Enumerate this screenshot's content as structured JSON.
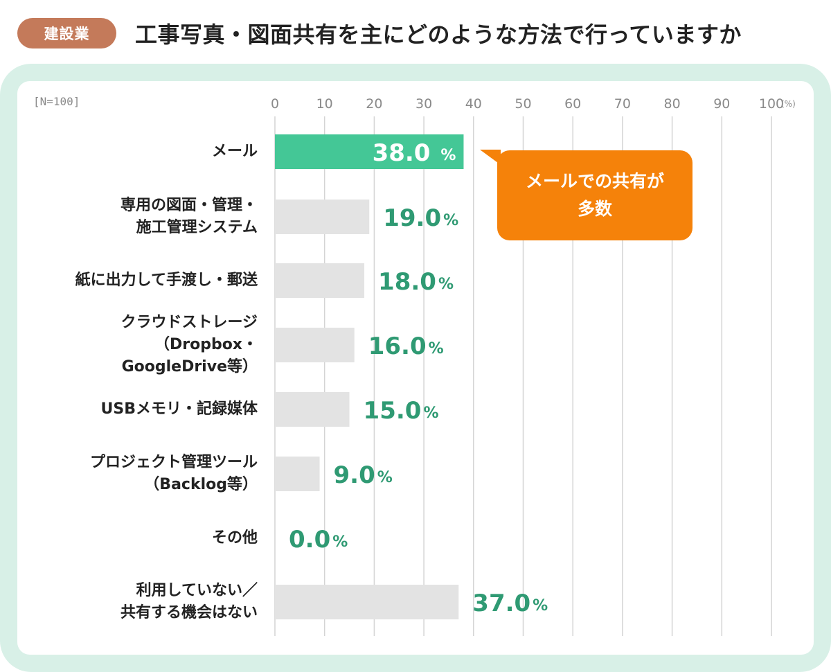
{
  "header": {
    "badge": "建設業",
    "title": "工事写真・図面共有を主にどのような方法で行っていますか"
  },
  "sample_label": "[N=100]",
  "callout": {
    "line1": "メールでの共有が",
    "line2": "多数"
  },
  "colors": {
    "highlight_bar": "#44c796",
    "other_bar": "#e3e3e3",
    "value_text": "#2f9a73",
    "callout": "#f5820a",
    "panel": "#d8f0e7",
    "badge": "#c47a5a"
  },
  "chart_data": {
    "type": "bar",
    "orientation": "horizontal",
    "xlim": [
      0,
      100
    ],
    "xunit": "(%)",
    "xticks": [
      "0",
      "10",
      "20",
      "30",
      "40",
      "50",
      "60",
      "70",
      "80",
      "90",
      "100"
    ],
    "grid": true,
    "categories": [
      [
        "メール"
      ],
      [
        "専用の図面・管理・",
        "施工管理システム"
      ],
      [
        "紙に出力して手渡し・郵送"
      ],
      [
        "クラウドストレージ",
        "（Dropbox・",
        "GoogleDrive等）"
      ],
      [
        "USBメモリ・記録媒体"
      ],
      [
        "プロジェクト管理ツール",
        "（Backlog等）"
      ],
      [
        "その他"
      ],
      [
        "利用していない／",
        "共有する機会はない"
      ]
    ],
    "values": [
      38.0,
      19.0,
      18.0,
      16.0,
      15.0,
      9.0,
      0.0,
      37.0
    ],
    "value_labels": [
      "38.0",
      "19.0",
      "18.0",
      "16.0",
      "15.0",
      "9.0",
      "0.0",
      "37.0"
    ],
    "value_suffix": "%",
    "highlight_index": 0
  }
}
